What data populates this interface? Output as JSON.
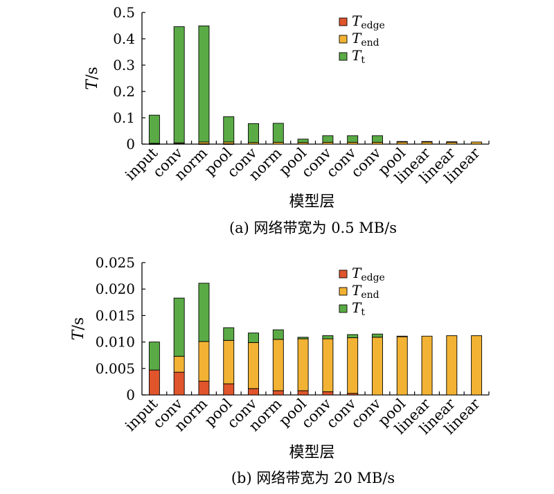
{
  "chart_data": [
    {
      "type": "bar",
      "stacked": true,
      "categories": [
        "input",
        "conv",
        "norm",
        "pool",
        "conv",
        "norm",
        "pool",
        "conv",
        "conv",
        "conv",
        "pool",
        "linear",
        "linear",
        "linear"
      ],
      "series": [
        {
          "name": "T",
          "subscript": "edge",
          "color": "#e0552b",
          "values": [
            0.001,
            0.002,
            0.001,
            0.001,
            0.0,
            0.0,
            0.0,
            0.0,
            0.0,
            0.0,
            0.0,
            0.0,
            0.0,
            0.0
          ]
        },
        {
          "name": "T",
          "subscript": "end",
          "color": "#f2b233",
          "values": [
            0.002,
            0.003,
            0.007,
            0.007,
            0.006,
            0.007,
            0.006,
            0.007,
            0.007,
            0.007,
            0.008,
            0.008,
            0.008,
            0.008
          ]
        },
        {
          "name": "T",
          "subscript": "t",
          "color": "#5aab46",
          "values": [
            0.107,
            0.441,
            0.441,
            0.096,
            0.072,
            0.072,
            0.013,
            0.025,
            0.025,
            0.025,
            0.002,
            0.002,
            0.001,
            0.0
          ]
        }
      ],
      "ylabel": "T/s",
      "xlabel": "模型层",
      "ylim": [
        0,
        0.5
      ],
      "yticks": [
        "0",
        "0.1",
        "0.2",
        "0.3",
        "0.4",
        "0.5"
      ],
      "legend_position": "top-right",
      "caption": "(a) 网络带宽为 0.5 MB/s"
    },
    {
      "type": "bar",
      "stacked": true,
      "categories": [
        "input",
        "conv",
        "norm",
        "pool",
        "conv",
        "norm",
        "pool",
        "conv",
        "conv",
        "conv",
        "pool",
        "linear",
        "linear",
        "linear"
      ],
      "series": [
        {
          "name": "T",
          "subscript": "edge",
          "color": "#e0552b",
          "values": [
            0.0047,
            0.0043,
            0.0026,
            0.0021,
            0.0012,
            0.0008,
            0.0008,
            0.0006,
            0.0003,
            0.0,
            0.0,
            0.0,
            0.0,
            0.0
          ]
        },
        {
          "name": "T",
          "subscript": "end",
          "color": "#f2b233",
          "values": [
            0.0,
            0.003,
            0.0075,
            0.0082,
            0.0087,
            0.0097,
            0.0098,
            0.01,
            0.0105,
            0.0109,
            0.011,
            0.0111,
            0.0112,
            0.0112
          ]
        },
        {
          "name": "T",
          "subscript": "t",
          "color": "#5aab46",
          "values": [
            0.0053,
            0.011,
            0.011,
            0.0024,
            0.0018,
            0.0018,
            0.0003,
            0.0006,
            0.0006,
            0.0006,
            0.0001,
            0.0,
            0.0,
            0.0
          ]
        }
      ],
      "ylabel": "T/s",
      "xlabel": "模型层",
      "ylim": [
        0,
        0.025
      ],
      "yticks": [
        "0",
        "0.005",
        "0.010",
        "0.015",
        "0.020",
        "0.025"
      ],
      "legend_position": "top-right",
      "caption": "(b) 网络带宽为 20 MB/s"
    }
  ]
}
